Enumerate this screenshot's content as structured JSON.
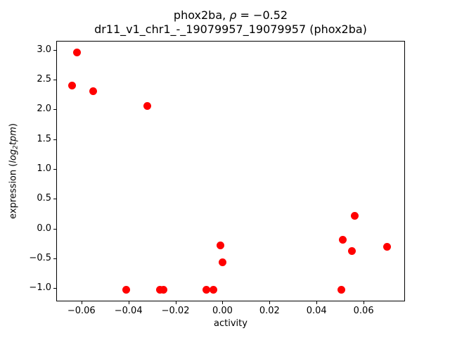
{
  "figure": {
    "background": "#ffffff",
    "text_color": "#000000"
  },
  "text_parts": {
    "title_prefix": "phox2ba, ",
    "title_rho": "ρ",
    "title_suffix": " = −0.52",
    "ylabel_prefix": "expression (",
    "ylabel_log": "log",
    "ylabel_sub": "2",
    "ylabel_tpm": "tpm",
    "ylabel_close": ")"
  },
  "chart_data": {
    "type": "scatter",
    "title": "phox2ba, ρ = −0.52",
    "subtitle": "dr11_v1_chr1_-_19079957_19079957 (phox2ba)",
    "xlabel": "activity",
    "ylabel": "expression (log₂tpm)",
    "rho": -0.52,
    "marker_color": "#ff0000",
    "marker_diameter_px": 11,
    "grid": false,
    "legend": null,
    "xlim": [
      -0.0707,
      0.0776
    ],
    "ylim": [
      -1.22,
      3.15
    ],
    "xticks": [
      -0.06,
      -0.04,
      -0.02,
      0.0,
      0.02,
      0.04,
      0.06
    ],
    "xtick_labels": [
      "−0.06",
      "−0.04",
      "−0.02",
      "0.00",
      "0.02",
      "0.04",
      "0.06"
    ],
    "yticks": [
      3.0,
      2.5,
      2.0,
      1.5,
      1.0,
      0.5,
      0.0,
      -0.5,
      -1.0
    ],
    "ytick_labels": [
      "3.0",
      "2.5",
      "2.0",
      "1.5",
      "1.0",
      "0.5",
      "0.0",
      "−0.5",
      "−1.0"
    ],
    "points": [
      [
        -0.064,
        2.4
      ],
      [
        -0.062,
        2.95
      ],
      [
        -0.055,
        2.3
      ],
      [
        -0.032,
        2.06
      ],
      [
        -0.041,
        -1.02
      ],
      [
        -0.0267,
        -1.02
      ],
      [
        -0.0252,
        -1.02
      ],
      [
        -0.007,
        -1.02
      ],
      [
        -0.004,
        -1.02
      ],
      [
        -0.001,
        -0.28
      ],
      [
        0.0,
        -0.56
      ],
      [
        0.0505,
        -1.02
      ],
      [
        0.0511,
        -0.19
      ],
      [
        0.055,
        -0.38
      ],
      [
        0.0563,
        0.21
      ],
      [
        0.07,
        -0.3
      ]
    ]
  }
}
